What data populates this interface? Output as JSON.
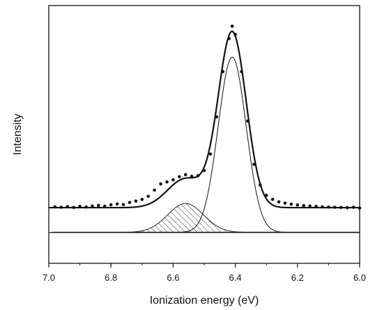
{
  "chart_data": {
    "type": "scatter",
    "xlabel": "Ionization energy (eV)",
    "ylabel": "Intensity",
    "xlim": [
      7.0,
      6.0
    ],
    "x_reversed": true,
    "xticks": [
      "7.0",
      "6.8",
      "6.6",
      "6.4",
      "6.2",
      "6.0"
    ],
    "ylim": [
      -0.15,
      1.1
    ],
    "yticks_shown": false,
    "grid": false,
    "baseline": 0.0,
    "components": [
      {
        "center": 6.41,
        "amplitude": 0.85,
        "width_sigma": 0.045,
        "fill": "none"
      },
      {
        "center": 6.56,
        "amplitude": 0.14,
        "width_sigma": 0.058,
        "fill": "hatched"
      }
    ],
    "offset_to_experimental": 0.12,
    "series": [
      {
        "style": "markers",
        "x": [
          6.98,
          6.96,
          6.94,
          6.92,
          6.9,
          6.88,
          6.86,
          6.84,
          6.82,
          6.8,
          6.78,
          6.76,
          6.74,
          6.72,
          6.7,
          6.68,
          6.66,
          6.64,
          6.62,
          6.6,
          6.58,
          6.56,
          6.54,
          6.52,
          6.5,
          6.48,
          6.46,
          6.44,
          6.42,
          6.41,
          6.4,
          6.38,
          6.36,
          6.34,
          6.32,
          6.3,
          6.28,
          6.26,
          6.24,
          6.22,
          6.2,
          6.18,
          6.16,
          6.14,
          6.12,
          6.1,
          6.08,
          6.06,
          6.04,
          6.02,
          6.0
        ],
        "y": [
          0.124,
          0.122,
          0.125,
          0.121,
          0.126,
          0.123,
          0.128,
          0.131,
          0.127,
          0.134,
          0.138,
          0.135,
          0.145,
          0.152,
          0.16,
          0.175,
          0.205,
          0.235,
          0.245,
          0.255,
          0.27,
          0.28,
          0.272,
          0.275,
          0.3,
          0.38,
          0.56,
          0.78,
          0.94,
          1.0,
          0.96,
          0.78,
          0.54,
          0.33,
          0.23,
          0.18,
          0.16,
          0.148,
          0.142,
          0.137,
          0.133,
          0.13,
          0.128,
          0.126,
          0.124,
          0.123,
          0.122,
          0.121,
          0.12,
          0.122,
          0.118
        ]
      },
      {
        "style": "line",
        "name": "",
        "role": "overall fit"
      },
      {
        "style": "line",
        "name": "",
        "role": "main component"
      },
      {
        "style": "hatched-area",
        "name": "",
        "role": "shoulder component"
      },
      {
        "style": "line",
        "name": "",
        "role": "baseline"
      }
    ]
  }
}
